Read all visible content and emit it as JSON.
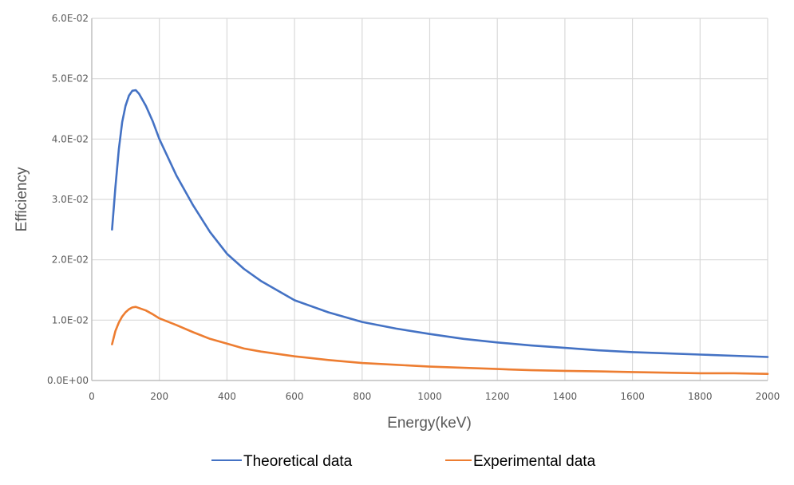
{
  "chart_data": {
    "type": "line",
    "title": "",
    "xlabel": "Energy(keV)",
    "ylabel": "Efficiency",
    "xlim": [
      0,
      2000
    ],
    "ylim": [
      0,
      0.06
    ],
    "grid": true,
    "legend_position": "bottom",
    "x_ticks": [
      0,
      200,
      400,
      600,
      800,
      1000,
      1200,
      1400,
      1600,
      1800,
      2000
    ],
    "x_tick_labels": [
      "0",
      "200",
      "400",
      "600",
      "800",
      "1000",
      "1200",
      "1400",
      "1600",
      "1800",
      "2000"
    ],
    "y_ticks": [
      0,
      0.01,
      0.02,
      0.03,
      0.04,
      0.05,
      0.06
    ],
    "y_tick_labels": [
      "0.0E+00",
      "1.0E-02",
      "2.0E-02",
      "3.0E-02",
      "4.0E-02",
      "5.0E-02",
      "6.0E-02"
    ],
    "series": [
      {
        "name": "Theoretical data",
        "color": "#4472C4",
        "x": [
          60,
          70,
          80,
          90,
          100,
          110,
          120,
          130,
          140,
          160,
          180,
          200,
          250,
          300,
          350,
          400,
          450,
          500,
          600,
          700,
          800,
          900,
          1000,
          1100,
          1200,
          1300,
          1400,
          1500,
          1600,
          1700,
          1800,
          1900,
          2000
        ],
        "y": [
          0.025,
          0.032,
          0.0383,
          0.0428,
          0.0455,
          0.0472,
          0.048,
          0.0481,
          0.0475,
          0.0455,
          0.043,
          0.04,
          0.034,
          0.029,
          0.0246,
          0.021,
          0.0185,
          0.0165,
          0.0133,
          0.0113,
          0.0097,
          0.0086,
          0.0077,
          0.0069,
          0.0063,
          0.0058,
          0.0054,
          0.005,
          0.0047,
          0.0045,
          0.0043,
          0.0041,
          0.0039
        ]
      },
      {
        "name": "Experimental data",
        "color": "#ED7D31",
        "x": [
          60,
          70,
          80,
          90,
          100,
          110,
          120,
          130,
          140,
          160,
          180,
          200,
          250,
          300,
          350,
          400,
          450,
          500,
          600,
          700,
          800,
          900,
          1000,
          1100,
          1200,
          1300,
          1400,
          1500,
          1600,
          1700,
          1800,
          1900,
          2000
        ],
        "y": [
          0.006,
          0.0082,
          0.0096,
          0.0106,
          0.0113,
          0.0118,
          0.0121,
          0.0122,
          0.012,
          0.0116,
          0.011,
          0.0103,
          0.0092,
          0.008,
          0.0069,
          0.0061,
          0.0053,
          0.0048,
          0.004,
          0.0034,
          0.0029,
          0.0026,
          0.0023,
          0.0021,
          0.0019,
          0.0017,
          0.0016,
          0.0015,
          0.0014,
          0.0013,
          0.0012,
          0.0012,
          0.0011
        ]
      }
    ]
  }
}
